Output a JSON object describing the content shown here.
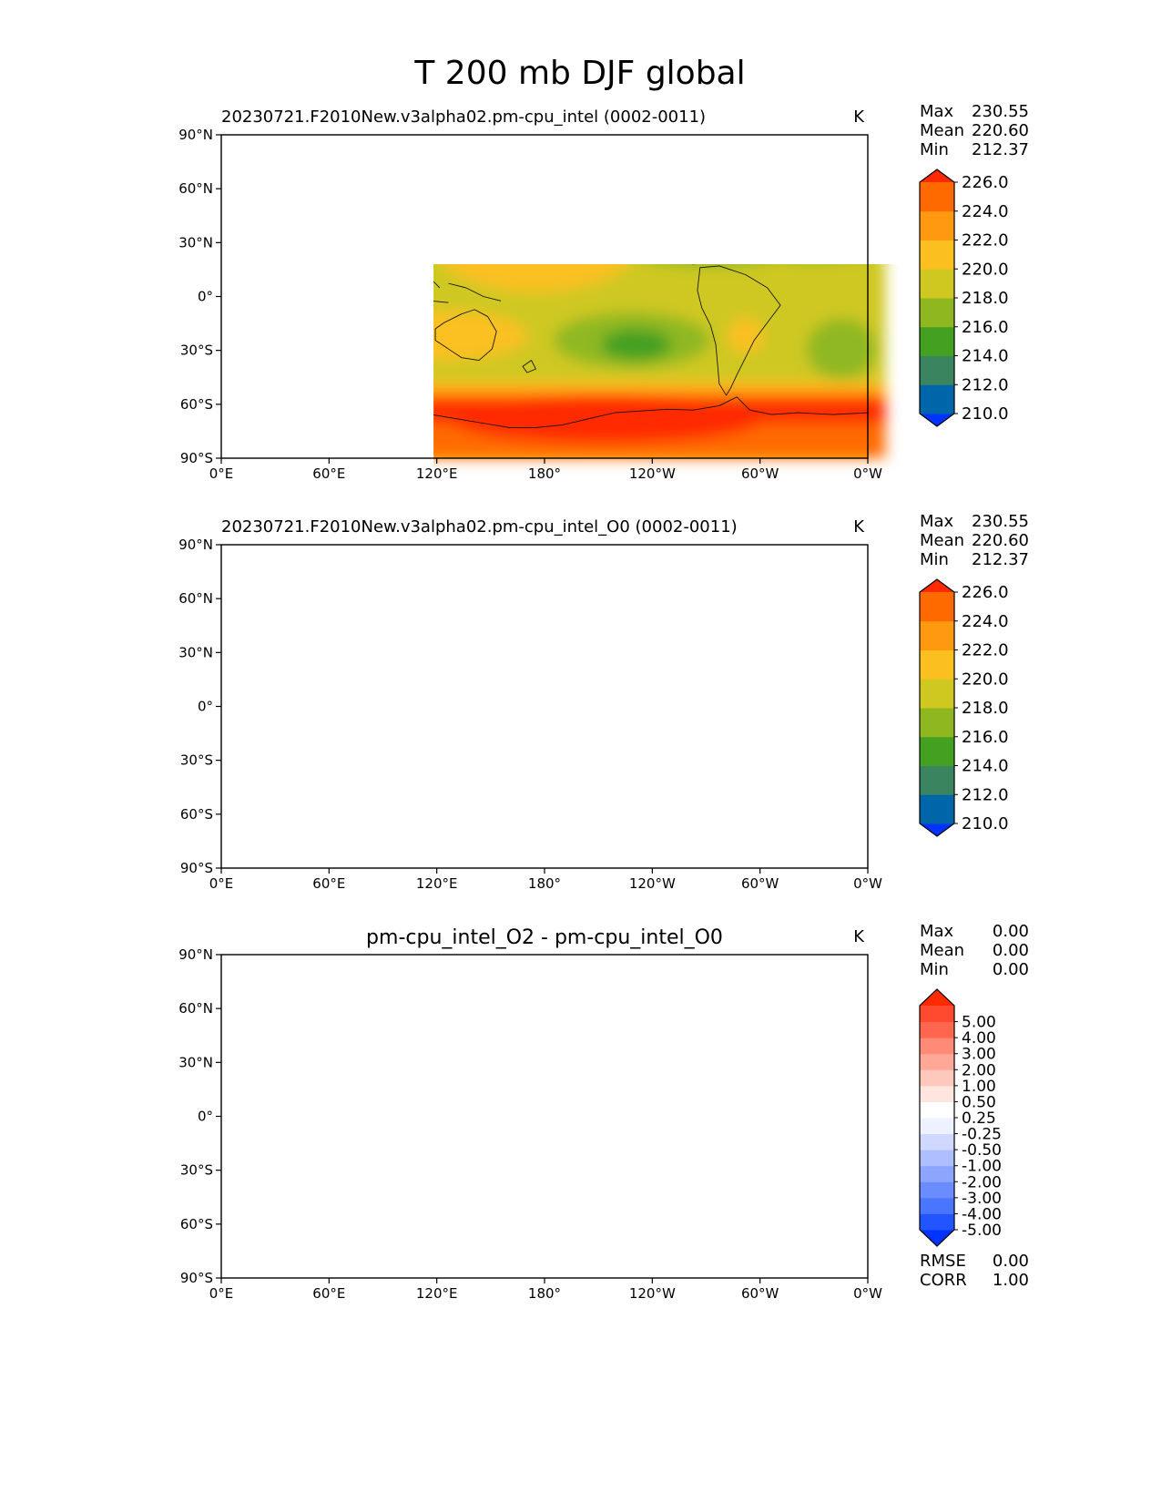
{
  "title": "T 200 mb DJF global",
  "chart_data": [
    {
      "type": "heatmap",
      "title": "20230721.F2010New.v3alpha02.pm-cpu_intel (0002-0011)",
      "units": "K",
      "stats": [
        {
          "label": "Max",
          "value": "230.55"
        },
        {
          "label": "Mean",
          "value": "220.60"
        },
        {
          "label": "Min",
          "value": "212.37"
        }
      ],
      "colorbar": {
        "colors": [
          "#0033ff",
          "#0066aa",
          "#3a8560",
          "#44a020",
          "#8fb820",
          "#cfc820",
          "#fbc020",
          "#ff9a10",
          "#ff6a00",
          "#ff2a00"
        ],
        "tick_labels": [
          "210.0",
          "212.0",
          "214.0",
          "216.0",
          "218.0",
          "220.0",
          "222.0",
          "224.0",
          "226.0"
        ],
        "extend": "both"
      },
      "x_ticks": [
        "0°E",
        "60°E",
        "120°E",
        "180°",
        "120°W",
        "60°W",
        "0°W"
      ],
      "y_ticks": [
        "90°N",
        "60°N",
        "30°N",
        "0°",
        "30°S",
        "60°S",
        "90°S"
      ]
    },
    {
      "type": "heatmap",
      "title": "20230721.F2010New.v3alpha02.pm-cpu_intel_O0 (0002-0011)",
      "units": "K",
      "stats": [
        {
          "label": "Max",
          "value": "230.55"
        },
        {
          "label": "Mean",
          "value": "220.60"
        },
        {
          "label": "Min",
          "value": "212.37"
        }
      ],
      "colorbar": {
        "colors": [
          "#0033ff",
          "#0066aa",
          "#3a8560",
          "#44a020",
          "#8fb820",
          "#cfc820",
          "#fbc020",
          "#ff9a10",
          "#ff6a00",
          "#ff2a00"
        ],
        "tick_labels": [
          "210.0",
          "212.0",
          "214.0",
          "216.0",
          "218.0",
          "220.0",
          "222.0",
          "224.0",
          "226.0"
        ],
        "extend": "both"
      },
      "x_ticks": [
        "0°E",
        "60°E",
        "120°E",
        "180°",
        "120°W",
        "60°W",
        "0°W"
      ],
      "y_ticks": [
        "90°N",
        "60°N",
        "30°N",
        "0°",
        "30°S",
        "60°S",
        "90°S"
      ]
    },
    {
      "type": "heatmap",
      "title": "pm-cpu_intel_O2 - pm-cpu_intel_O0",
      "units": "K",
      "stats": [
        {
          "label": "Max",
          "value": "0.00"
        },
        {
          "label": "Mean",
          "value": "0.00"
        },
        {
          "label": "Min",
          "value": "0.00"
        }
      ],
      "colorbar": {
        "colors": [
          "#0033ff",
          "#2255ff",
          "#4a75ff",
          "#6b8cff",
          "#8ca5ff",
          "#aebfff",
          "#cfd8ff",
          "#eef1ff",
          "#ffffff",
          "#ffe5e0",
          "#ffc8bd",
          "#ffa898",
          "#ff8a75",
          "#ff6650",
          "#ff4a30",
          "#ff2a00"
        ],
        "tick_labels": [
          "-5.00",
          "-4.00",
          "-3.00",
          "-2.00",
          "-1.00",
          "-0.50",
          "-0.25",
          "0.25",
          "0.50",
          "1.00",
          "2.00",
          "3.00",
          "4.00",
          "5.00"
        ],
        "extend": "both"
      },
      "x_ticks": [
        "0°E",
        "60°E",
        "120°E",
        "180°",
        "120°W",
        "60°W",
        "0°W"
      ],
      "y_ticks": [
        "90°N",
        "60°N",
        "30°N",
        "0°",
        "30°S",
        "60°S",
        "90°S"
      ],
      "metrics": [
        {
          "label": "RMSE",
          "value": "0.00"
        },
        {
          "label": "CORR",
          "value": "1.00"
        }
      ]
    }
  ]
}
